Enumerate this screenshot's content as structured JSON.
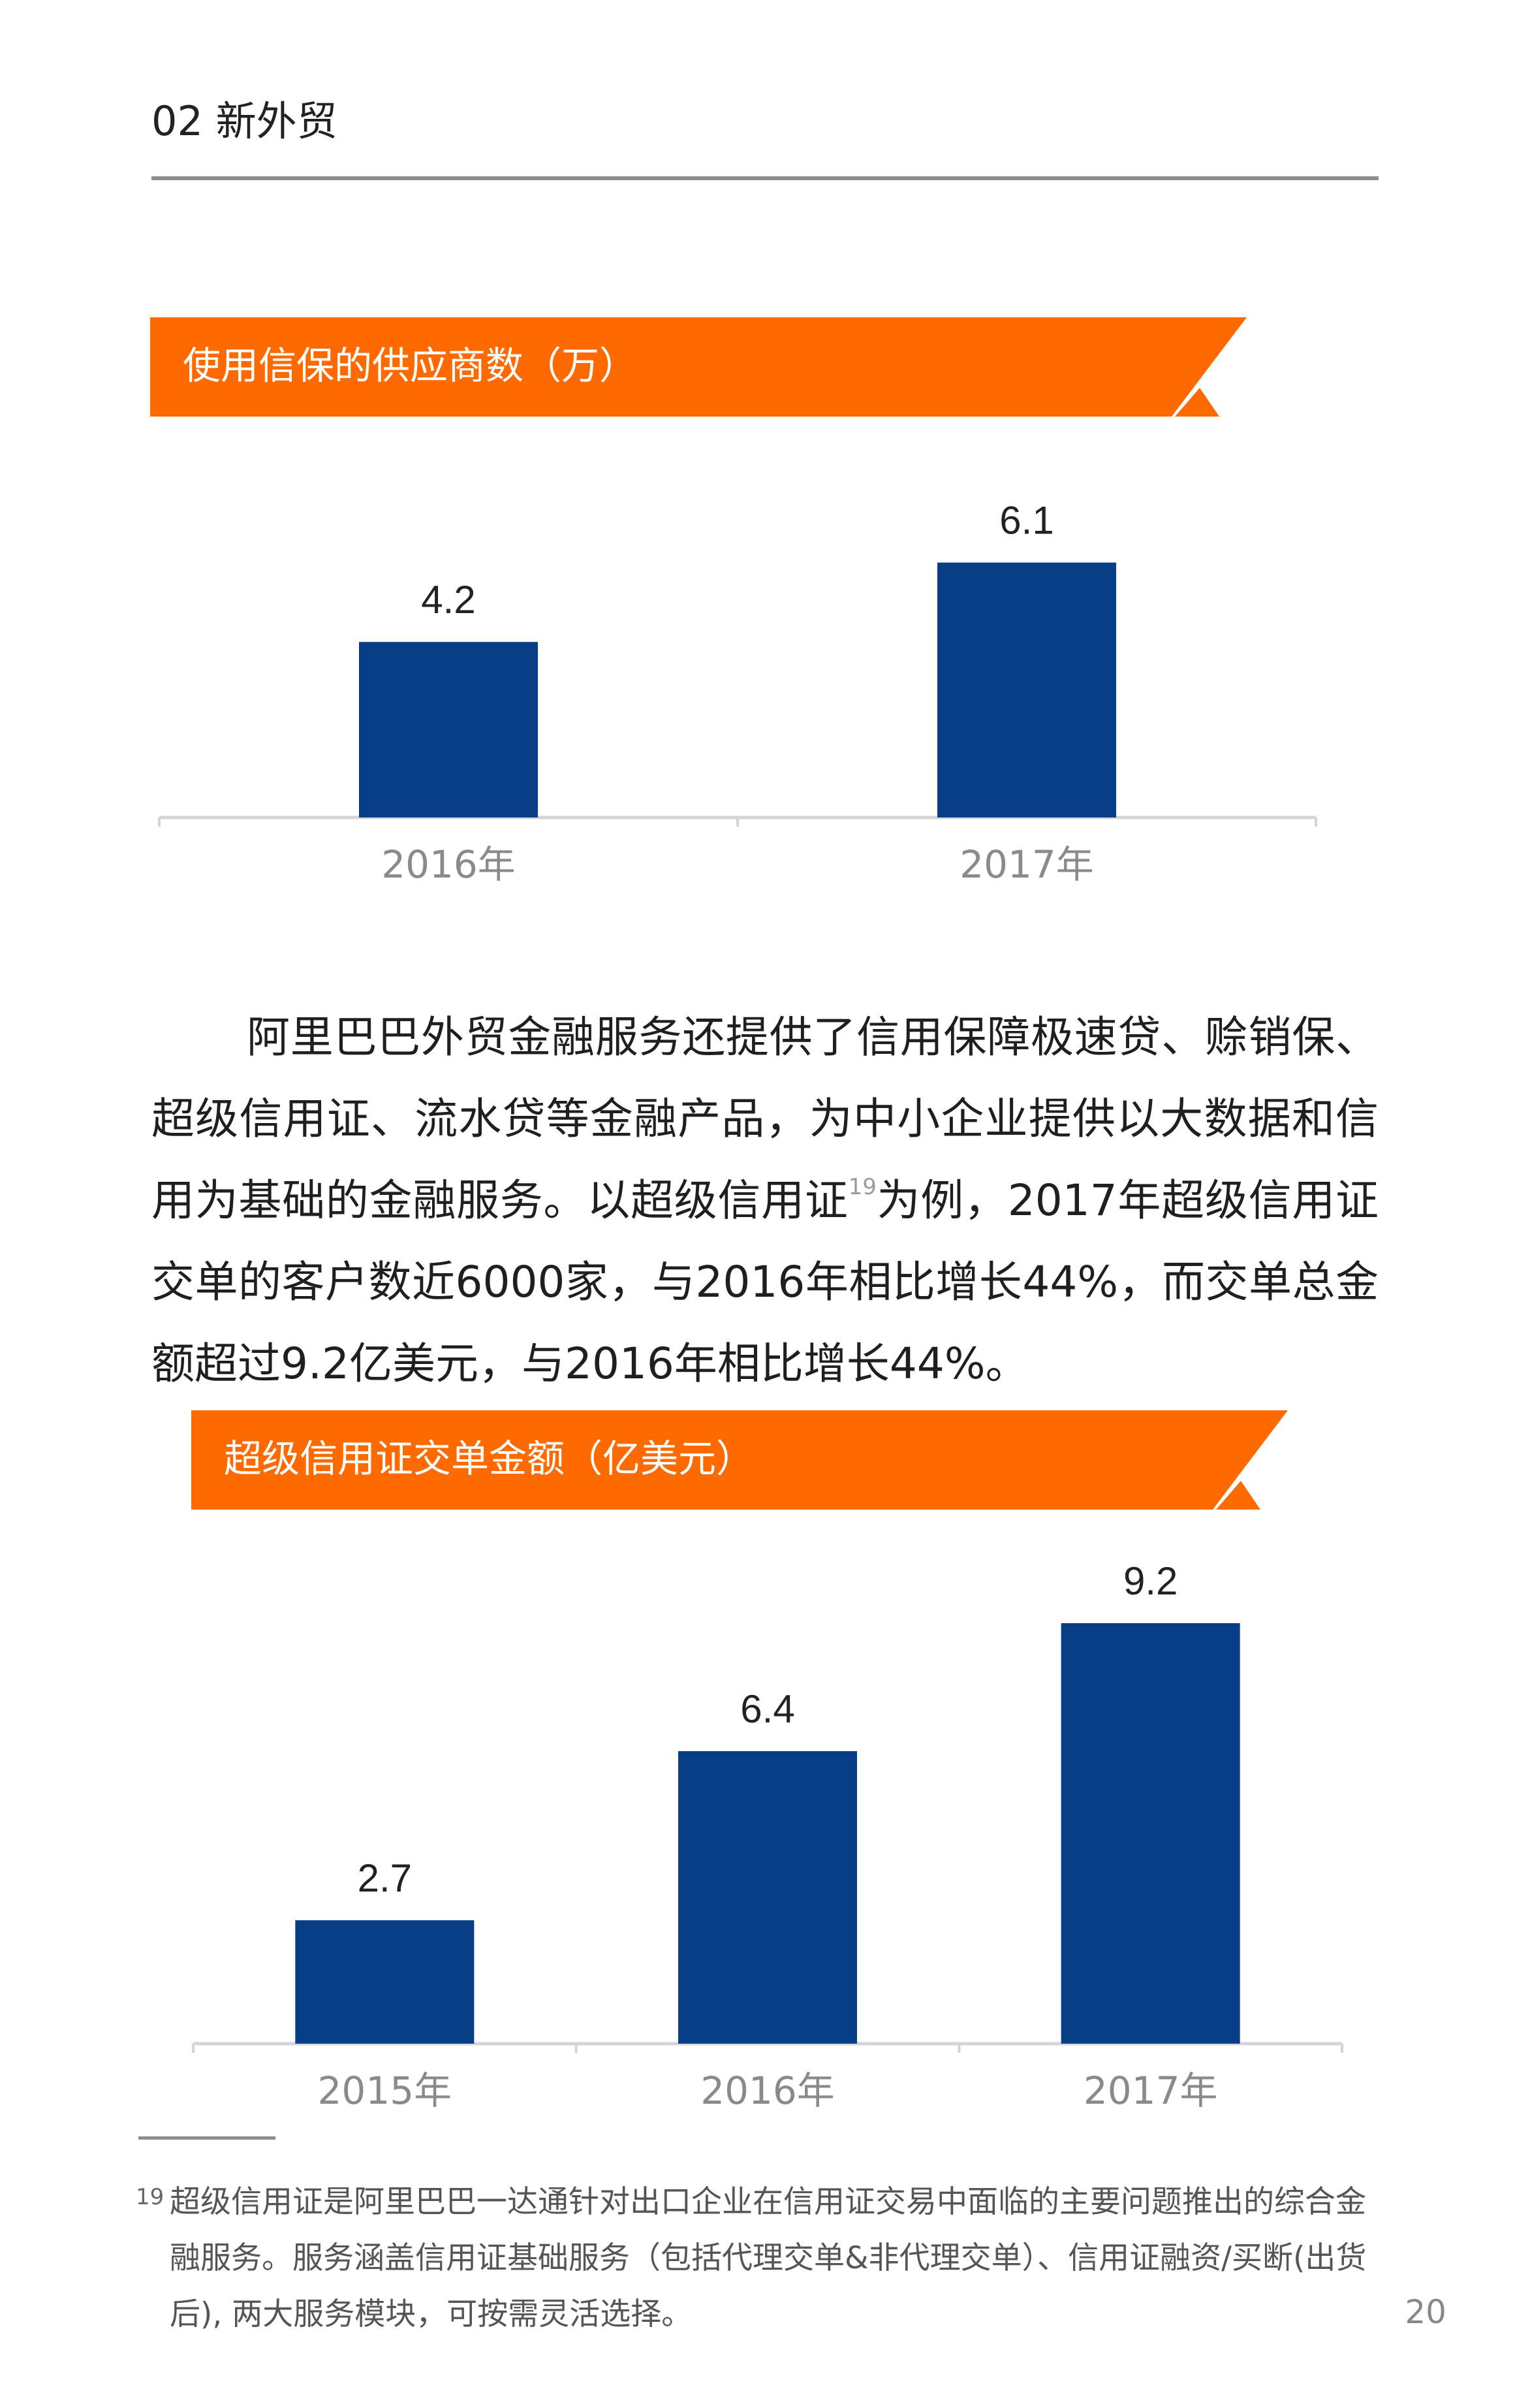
{
  "header": {
    "section_title": "02 新外贸"
  },
  "colors": {
    "accent_orange": "#ff6a00",
    "bar_blue": "#073e87",
    "axis_gray": "#d4d4d4"
  },
  "banners": [
    {
      "label": "使用信保的供应商数（万）"
    },
    {
      "label": "超级信用证交单金额（亿美元）"
    }
  ],
  "chart_data": [
    {
      "type": "bar",
      "title": "使用信保的供应商数（万）",
      "categories": [
        "2016年",
        "2017年"
      ],
      "values": [
        4.2,
        6.1
      ],
      "value_labels": [
        "4.2",
        "6.1"
      ],
      "xlabel": "",
      "ylabel": "",
      "ylim": [
        0,
        7.0
      ],
      "grid": false,
      "legend": "none"
    },
    {
      "type": "bar",
      "title": "超级信用证交单金额（亿美元）",
      "categories": [
        "2015年",
        "2016年",
        "2017年"
      ],
      "values": [
        2.7,
        6.4,
        9.2
      ],
      "value_labels": [
        "2.7",
        "6.4",
        "9.2"
      ],
      "xlabel": "",
      "ylabel": "",
      "ylim": [
        0,
        10.0
      ],
      "grid": false,
      "legend": "none"
    }
  ],
  "paragraph": {
    "text_before_ref": "阿里巴巴外贸金融服务还提供了信用保障极速贷、赊销保、超级信用证、流水贷等金融产品，为中小企业提供以大数据和信用为基础的金融服务。以超级信用证",
    "ref_mark": "19",
    "text_after_ref": "为例，2017年超级信用证交单的客户数近6000家，与2016年相比增长44%，而交单总金额超过9.2亿美元，与2016年相比增长44%。"
  },
  "footnote": {
    "number": "19",
    "text": "超级信用证是阿里巴巴一达通针对出口企业在信用证交易中面临的主要问题推出的综合金融服务。服务涵盖信用证基础服务（包括代理交单&非代理交单）、信用证融资/买断(出货后), 两大服务模块，可按需灵活选择。"
  },
  "page_number": "20"
}
